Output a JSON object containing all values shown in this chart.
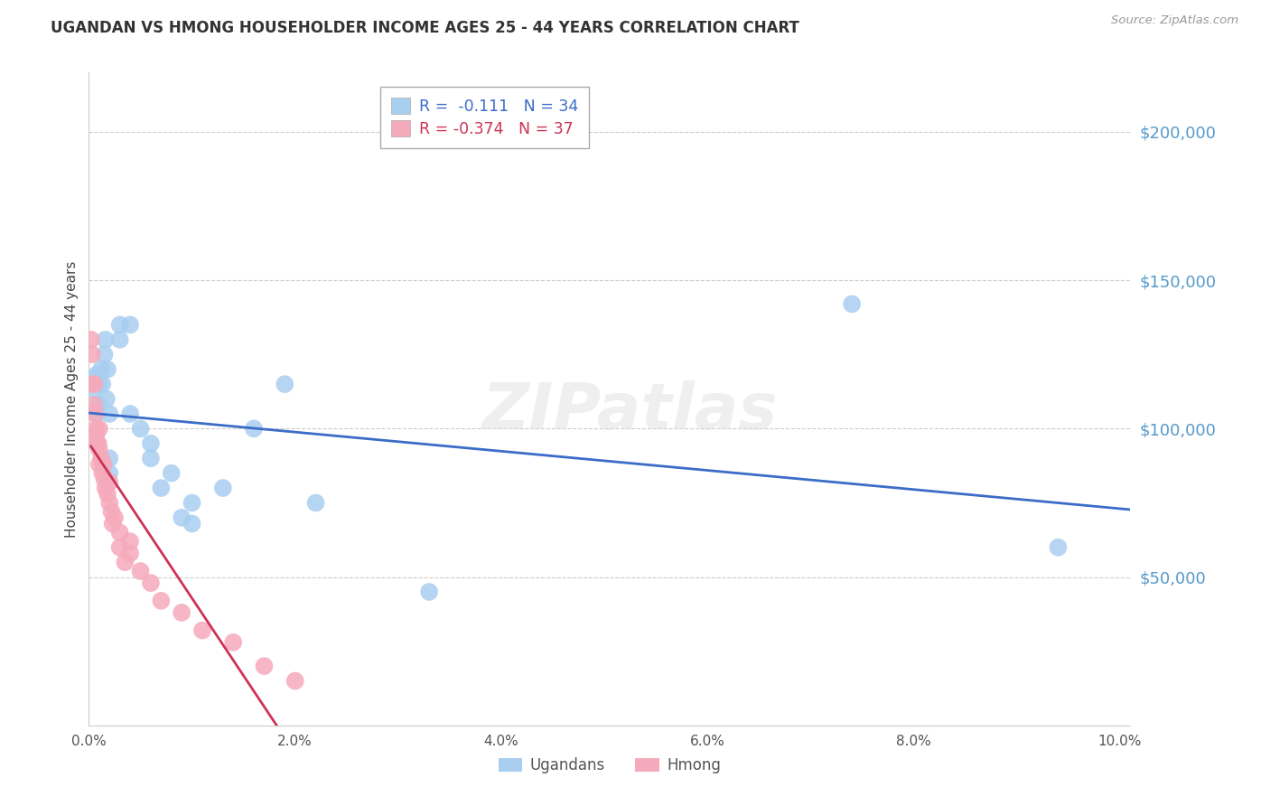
{
  "title": "UGANDAN VS HMONG HOUSEHOLDER INCOME AGES 25 - 44 YEARS CORRELATION CHART",
  "source": "Source: ZipAtlas.com",
  "ylabel": "Householder Income Ages 25 - 44 years",
  "xlim": [
    0.0,
    0.101
  ],
  "ylim": [
    0,
    220000
  ],
  "xtick_values": [
    0.0,
    0.02,
    0.04,
    0.06,
    0.08,
    0.1
  ],
  "xtick_labels": [
    "0.0%",
    "2.0%",
    "4.0%",
    "6.0%",
    "8.0%",
    "10.0%"
  ],
  "ytick_values": [
    50000,
    100000,
    150000,
    200000
  ],
  "ytick_labels": [
    "$50,000",
    "$100,000",
    "$150,000",
    "$200,000"
  ],
  "watermark": "ZIPatlas",
  "ugandan_R": -0.111,
  "ugandan_N": 34,
  "hmong_R": -0.374,
  "hmong_N": 37,
  "ugandan_color": "#A8CEF0",
  "hmong_color": "#F5AABB",
  "ugandan_line_color": "#3B6CC8",
  "hmong_line_color": "#CC3355",
  "hmong_dashed_color": "#CCCCCC",
  "background_color": "#FFFFFF",
  "grid_color": "#CCCCCC",
  "title_color": "#333333",
  "ytick_color": "#5599CC",
  "legend_border_color": "#AAAAAA",
  "ugandan_x": [
    0.0005,
    0.0007,
    0.0008,
    0.0009,
    0.001,
    0.001,
    0.0012,
    0.0013,
    0.0015,
    0.0016,
    0.0017,
    0.0018,
    0.002,
    0.002,
    0.002,
    0.003,
    0.003,
    0.004,
    0.004,
    0.005,
    0.006,
    0.006,
    0.007,
    0.008,
    0.009,
    0.01,
    0.01,
    0.013,
    0.016,
    0.019,
    0.022,
    0.033,
    0.074,
    0.094
  ],
  "ugandan_y": [
    113000,
    118000,
    105000,
    118000,
    115000,
    108000,
    120000,
    115000,
    125000,
    130000,
    110000,
    120000,
    85000,
    90000,
    105000,
    135000,
    130000,
    105000,
    135000,
    100000,
    95000,
    90000,
    80000,
    85000,
    70000,
    75000,
    68000,
    80000,
    100000,
    115000,
    75000,
    45000,
    142000,
    60000
  ],
  "hmong_x": [
    0.0002,
    0.0003,
    0.0004,
    0.0005,
    0.0005,
    0.0006,
    0.0007,
    0.0007,
    0.0008,
    0.0009,
    0.001,
    0.001,
    0.001,
    0.0012,
    0.0013,
    0.0014,
    0.0015,
    0.0016,
    0.0018,
    0.002,
    0.002,
    0.0022,
    0.0023,
    0.0025,
    0.003,
    0.003,
    0.0035,
    0.004,
    0.004,
    0.005,
    0.006,
    0.007,
    0.009,
    0.011,
    0.014,
    0.017,
    0.02
  ],
  "hmong_y": [
    130000,
    125000,
    115000,
    115000,
    108000,
    105000,
    100000,
    98000,
    95000,
    95000,
    100000,
    93000,
    88000,
    90000,
    85000,
    88000,
    83000,
    80000,
    78000,
    82000,
    75000,
    72000,
    68000,
    70000,
    65000,
    60000,
    55000,
    62000,
    58000,
    52000,
    48000,
    42000,
    38000,
    32000,
    28000,
    20000,
    15000
  ]
}
